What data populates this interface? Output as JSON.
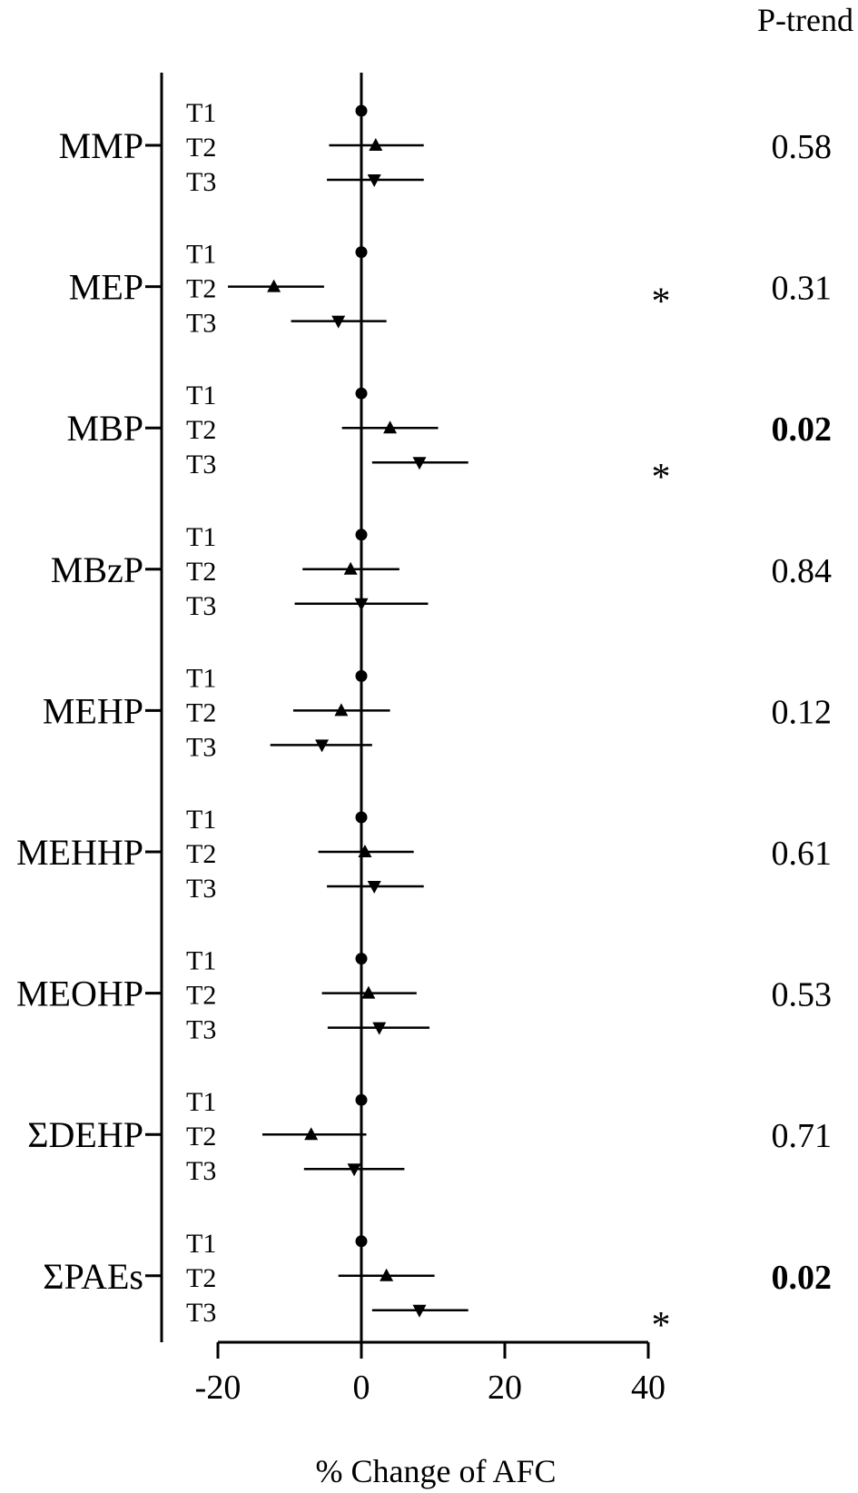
{
  "chart_data": {
    "type": "scatter",
    "subtype": "forest-plot",
    "xlabel": "% Change of AFC",
    "x_ticks": [
      -20,
      0,
      20,
      40
    ],
    "xlim": [
      -20,
      40
    ],
    "ptrend_header": "P-trend",
    "tertile_labels": [
      "T1",
      "T2",
      "T3"
    ],
    "markers": {
      "T1": "circle",
      "T2": "triangle-up",
      "T3": "triangle-down"
    },
    "groups": [
      {
        "name": "MMP",
        "ptrend": "0.58",
        "ptrend_bold": false,
        "estimates": [
          {
            "tertile": "T1",
            "est": 0,
            "lo": null,
            "hi": null,
            "sig": false
          },
          {
            "tertile": "T2",
            "est": 2.0,
            "lo": -4.5,
            "hi": 8.7,
            "sig": false
          },
          {
            "tertile": "T3",
            "est": 1.8,
            "lo": -4.8,
            "hi": 8.7,
            "sig": false
          }
        ]
      },
      {
        "name": "MEP",
        "ptrend": "0.31",
        "ptrend_bold": false,
        "estimates": [
          {
            "tertile": "T1",
            "est": 0,
            "lo": null,
            "hi": null,
            "sig": false
          },
          {
            "tertile": "T2",
            "est": -12.2,
            "lo": -18.6,
            "hi": -5.2,
            "sig": true
          },
          {
            "tertile": "T3",
            "est": -3.2,
            "lo": -9.8,
            "hi": 3.5,
            "sig": false
          }
        ]
      },
      {
        "name": "MBP",
        "ptrend": "0.02",
        "ptrend_bold": true,
        "estimates": [
          {
            "tertile": "T1",
            "est": 0,
            "lo": null,
            "hi": null,
            "sig": false
          },
          {
            "tertile": "T2",
            "est": 4.0,
            "lo": -2.7,
            "hi": 10.7,
            "sig": false
          },
          {
            "tertile": "T3",
            "est": 8.1,
            "lo": 1.5,
            "hi": 14.9,
            "sig": true
          }
        ]
      },
      {
        "name": "MBzP",
        "ptrend": "0.84",
        "ptrend_bold": false,
        "estimates": [
          {
            "tertile": "T1",
            "est": 0,
            "lo": null,
            "hi": null,
            "sig": false
          },
          {
            "tertile": "T2",
            "est": -1.5,
            "lo": -8.2,
            "hi": 5.3,
            "sig": false
          },
          {
            "tertile": "T3",
            "est": 0,
            "lo": -9.3,
            "hi": 9.3,
            "sig": false
          }
        ]
      },
      {
        "name": "MEHP",
        "ptrend": "0.12",
        "ptrend_bold": false,
        "estimates": [
          {
            "tertile": "T1",
            "est": 0,
            "lo": null,
            "hi": null,
            "sig": false
          },
          {
            "tertile": "T2",
            "est": -2.8,
            "lo": -9.5,
            "hi": 4.0,
            "sig": false
          },
          {
            "tertile": "T3",
            "est": -5.5,
            "lo": -12.7,
            "hi": 1.5,
            "sig": false
          }
        ]
      },
      {
        "name": "MEHHP",
        "ptrend": "0.61",
        "ptrend_bold": false,
        "estimates": [
          {
            "tertile": "T1",
            "est": 0,
            "lo": null,
            "hi": null,
            "sig": false
          },
          {
            "tertile": "T2",
            "est": 0.5,
            "lo": -6.0,
            "hi": 7.3,
            "sig": false
          },
          {
            "tertile": "T3",
            "est": 1.8,
            "lo": -4.8,
            "hi": 8.7,
            "sig": false
          }
        ]
      },
      {
        "name": "MEOHP",
        "ptrend": "0.53",
        "ptrend_bold": false,
        "estimates": [
          {
            "tertile": "T1",
            "est": 0,
            "lo": null,
            "hi": null,
            "sig": false
          },
          {
            "tertile": "T2",
            "est": 1.0,
            "lo": -5.5,
            "hi": 7.7,
            "sig": false
          },
          {
            "tertile": "T3",
            "est": 2.5,
            "lo": -4.7,
            "hi": 9.5,
            "sig": false
          }
        ]
      },
      {
        "name": "ΣDEHP",
        "ptrend": "0.71",
        "ptrend_bold": false,
        "estimates": [
          {
            "tertile": "T1",
            "est": 0,
            "lo": null,
            "hi": null,
            "sig": false
          },
          {
            "tertile": "T2",
            "est": -7.0,
            "lo": -13.8,
            "hi": 0.7,
            "sig": false
          },
          {
            "tertile": "T3",
            "est": -1.0,
            "lo": -8.0,
            "hi": 6.0,
            "sig": false
          }
        ]
      },
      {
        "name": "ΣPAEs",
        "ptrend": "0.02",
        "ptrend_bold": true,
        "estimates": [
          {
            "tertile": "T1",
            "est": 0,
            "lo": null,
            "hi": null,
            "sig": false
          },
          {
            "tertile": "T2",
            "est": 3.5,
            "lo": -3.2,
            "hi": 10.2,
            "sig": false
          },
          {
            "tertile": "T3",
            "est": 8.1,
            "lo": 1.5,
            "hi": 14.9,
            "sig": true
          }
        ]
      }
    ],
    "significance_marker": "*"
  }
}
